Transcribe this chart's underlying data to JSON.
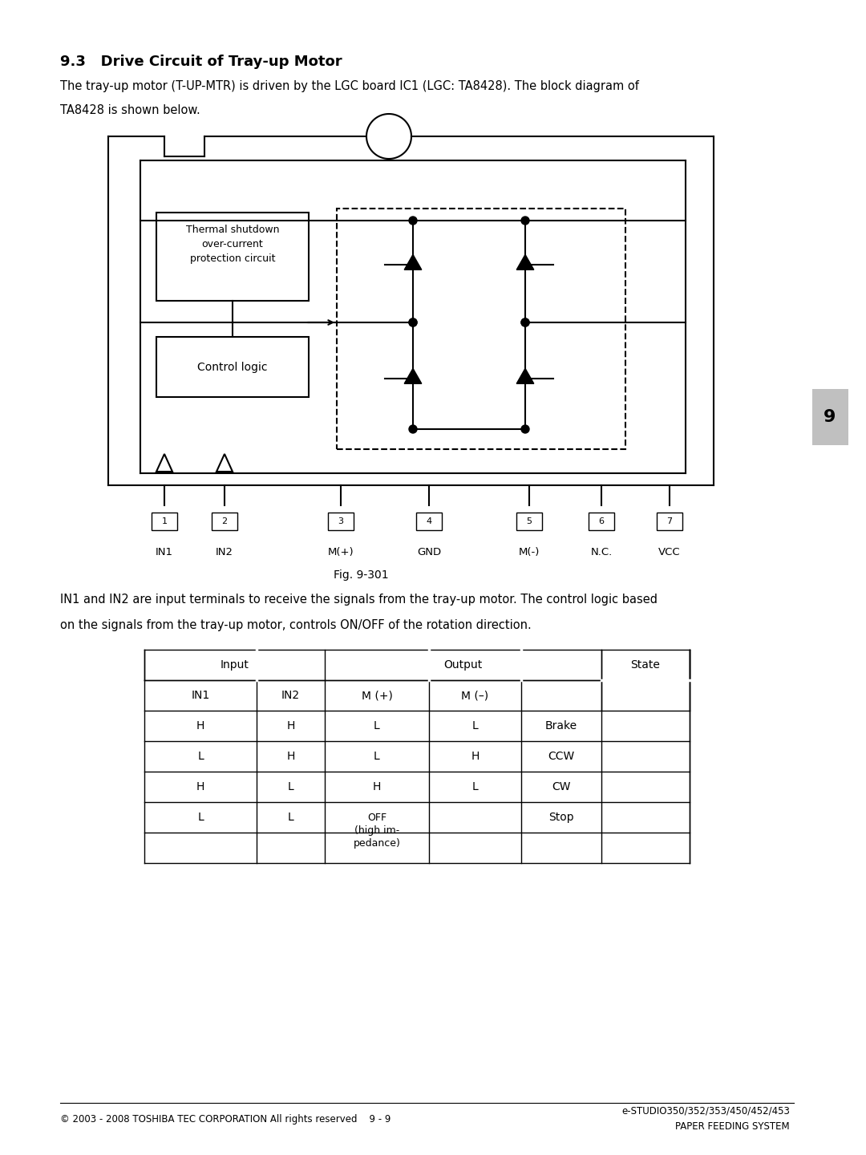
{
  "title": "9.3   Drive Circuit of Tray-up Motor",
  "body_text1": "The tray-up motor (T-UP-MTR) is driven by the LGC board IC1 (LGC: TA8428). The block diagram of",
  "body_text2": "TA8428 is shown below.",
  "fig_caption": "Fig. 9-301",
  "paragraph2_line1": "IN1 and IN2 are input terminals to receive the signals from the tray-up motor. The control logic based",
  "paragraph2_line2": "on the signals from the tray-up motor, controls ON/OFF of the rotation direction.",
  "pin_labels": [
    "IN1",
    "IN2",
    "M(+)",
    "GND",
    "M(-)",
    "N.C.",
    "VCC"
  ],
  "pin_numbers": [
    "1",
    "2",
    "3",
    "4",
    "5",
    "6",
    "7"
  ],
  "table_headers_input": [
    "Input",
    "IN1",
    "IN2"
  ],
  "table_headers_output": [
    "Output",
    "M (+)",
    "M (–)"
  ],
  "table_header_state": "State",
  "table_rows": [
    [
      "H",
      "H",
      "L",
      "L",
      "Brake"
    ],
    [
      "L",
      "H",
      "L",
      "H",
      "CCW"
    ],
    [
      "H",
      "L",
      "H",
      "L",
      "CW"
    ],
    [
      "L",
      "L",
      "OFF\n(high im-\npedance)",
      "",
      "Stop"
    ]
  ],
  "footer_left": "© 2003 - 2008 TOSHIBA TEC CORPORATION All rights reserved    9 - 9",
  "footer_right1": "e-STUDIO350/352/353/450/452/453",
  "footer_right2": "PAPER FEEDING SYSTEM",
  "tab_label": "9",
  "bg_color": "#ffffff",
  "text_color": "#000000",
  "line_color": "#000000"
}
